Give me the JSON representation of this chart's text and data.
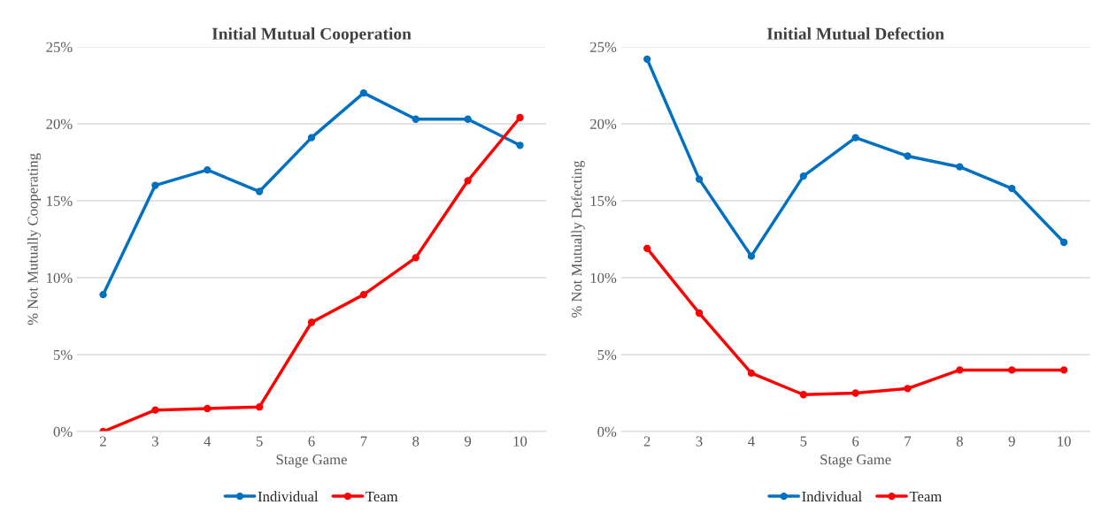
{
  "chart_data": [
    {
      "type": "line",
      "title": "Initial Mutual Cooperation",
      "xlabel": "Stage Game",
      "ylabel": "% Not Mutually Cooperating",
      "categories": [
        "2",
        "3",
        "4",
        "5",
        "6",
        "7",
        "8",
        "9",
        "10"
      ],
      "series": [
        {
          "name": "Individual",
          "color": "#0070c0",
          "values": [
            8.9,
            16.0,
            17.0,
            15.6,
            19.1,
            22.0,
            20.3,
            20.3,
            18.6
          ]
        },
        {
          "name": "Team",
          "color": "#ff0000",
          "values": [
            0,
            1.4,
            1.5,
            1.6,
            7.1,
            8.9,
            11.3,
            16.3,
            20.4
          ]
        }
      ],
      "ylim": [
        0,
        25
      ],
      "yticks": [
        {
          "value": 0,
          "label": "0%"
        },
        {
          "value": 5,
          "label": "5%"
        },
        {
          "value": 10,
          "label": "10%"
        },
        {
          "value": 15,
          "label": "15%"
        },
        {
          "value": 20,
          "label": "20%"
        },
        {
          "value": 25,
          "label": "25%"
        }
      ],
      "grid": "y",
      "legend": "bottom",
      "marker": "circle",
      "line_style": "solid"
    },
    {
      "type": "line",
      "title": "Initial Mutual Defection",
      "xlabel": "Stage Game",
      "ylabel": "% Not Mutually Defecting",
      "categories": [
        "2",
        "3",
        "4",
        "5",
        "6",
        "7",
        "8",
        "9",
        "10"
      ],
      "series": [
        {
          "name": "Individual",
          "color": "#0070c0",
          "values": [
            24.2,
            16.4,
            11.4,
            16.6,
            19.1,
            17.9,
            17.2,
            15.8,
            12.3
          ]
        },
        {
          "name": "Team",
          "color": "#ff0000",
          "values": [
            11.9,
            7.7,
            3.8,
            2.4,
            2.5,
            2.8,
            4.0,
            4.0,
            4.0
          ]
        }
      ],
      "ylim": [
        0,
        25
      ],
      "yticks": [
        {
          "value": 0,
          "label": "0%"
        },
        {
          "value": 5,
          "label": "5%"
        },
        {
          "value": 10,
          "label": "10%"
        },
        {
          "value": 15,
          "label": "15%"
        },
        {
          "value": 20,
          "label": "20%"
        },
        {
          "value": 25,
          "label": "25%"
        }
      ],
      "grid": "y",
      "legend": "bottom",
      "marker": "circle",
      "line_style": "solid"
    }
  ]
}
